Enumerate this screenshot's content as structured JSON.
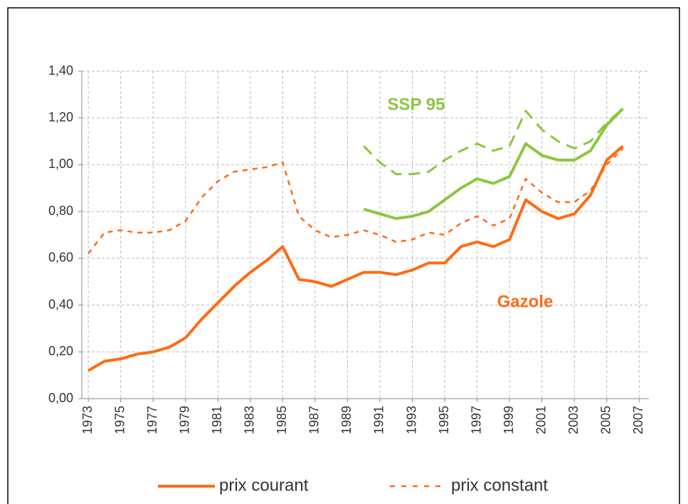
{
  "chart_data": {
    "type": "line",
    "x": [
      1973,
      1974,
      1975,
      1976,
      1977,
      1978,
      1979,
      1980,
      1981,
      1982,
      1983,
      1984,
      1985,
      1986,
      1987,
      1988,
      1989,
      1990,
      1991,
      1992,
      1993,
      1994,
      1995,
      1996,
      1997,
      1998,
      1999,
      2000,
      2001,
      2002,
      2003,
      2004,
      2005,
      2006
    ],
    "series": [
      {
        "color": "#ff6a13",
        "dashed": false,
        "values": [
          0.12,
          0.16,
          0.17,
          0.19,
          0.2,
          0.22,
          0.26,
          0.34,
          0.41,
          0.48,
          0.54,
          0.59,
          0.65,
          0.51,
          0.5,
          0.48,
          0.51,
          0.54,
          0.54,
          0.53,
          0.55,
          0.58,
          0.58,
          0.65,
          0.67,
          0.65,
          0.68,
          0.85,
          0.8,
          0.77,
          0.79,
          0.87,
          1.02,
          1.08
        ]
      },
      {
        "color": "#ff6a13",
        "dashed": true,
        "values": [
          0.62,
          0.71,
          0.72,
          0.71,
          0.71,
          0.72,
          0.76,
          0.86,
          0.93,
          0.97,
          0.98,
          0.99,
          1.01,
          0.78,
          0.72,
          0.69,
          0.7,
          0.72,
          0.7,
          0.67,
          0.68,
          0.71,
          0.7,
          0.75,
          0.78,
          0.74,
          0.77,
          0.94,
          0.88,
          0.84,
          0.84,
          0.89,
          1.0,
          1.07
        ]
      },
      {
        "color": "#8cc63f",
        "dashed": false,
        "values": [
          null,
          null,
          null,
          null,
          null,
          null,
          null,
          null,
          null,
          null,
          null,
          null,
          null,
          null,
          null,
          null,
          null,
          0.81,
          0.79,
          0.77,
          0.78,
          0.8,
          0.85,
          0.9,
          0.94,
          0.92,
          0.95,
          1.09,
          1.04,
          1.02,
          1.02,
          1.06,
          1.17,
          1.24
        ]
      },
      {
        "color": "#8cc63f",
        "dashed": true,
        "values": [
          null,
          null,
          null,
          null,
          null,
          null,
          null,
          null,
          null,
          null,
          null,
          null,
          null,
          null,
          null,
          null,
          null,
          1.08,
          1.01,
          0.96,
          0.96,
          0.97,
          1.02,
          1.06,
          1.09,
          1.06,
          1.08,
          1.23,
          1.15,
          1.1,
          1.07,
          1.1,
          1.18,
          1.24
        ]
      }
    ],
    "annotations": [
      {
        "text": "SSP 95",
        "color": "#8cc63f"
      },
      {
        "text": "Gazole",
        "color": "#ff6a13"
      }
    ],
    "legend": [
      {
        "label": "prix courant",
        "color": "#ff6a13",
        "dashed": false
      },
      {
        "label": "prix constant",
        "color": "#ff6a13",
        "dashed": true
      }
    ],
    "xlim": [
      1972.6,
      2007.6
    ],
    "xticks": [
      1973,
      1975,
      1977,
      1979,
      1981,
      1983,
      1985,
      1987,
      1989,
      1991,
      1993,
      1995,
      1997,
      1999,
      2001,
      2003,
      2005,
      2007
    ],
    "ylim": [
      0,
      1.4
    ],
    "yticks": [
      {
        "value": 0,
        "label": "0,00"
      },
      {
        "value": 0.2,
        "label": "0,20"
      },
      {
        "value": 0.4,
        "label": "0,40"
      },
      {
        "value": 0.6,
        "label": "0,60"
      },
      {
        "value": 0.8,
        "label": "0,80"
      },
      {
        "value": 1.0,
        "label": "1,00"
      },
      {
        "value": 1.2,
        "label": "1,20"
      },
      {
        "value": 1.4,
        "label": "1,40"
      }
    ],
    "grid": true
  }
}
